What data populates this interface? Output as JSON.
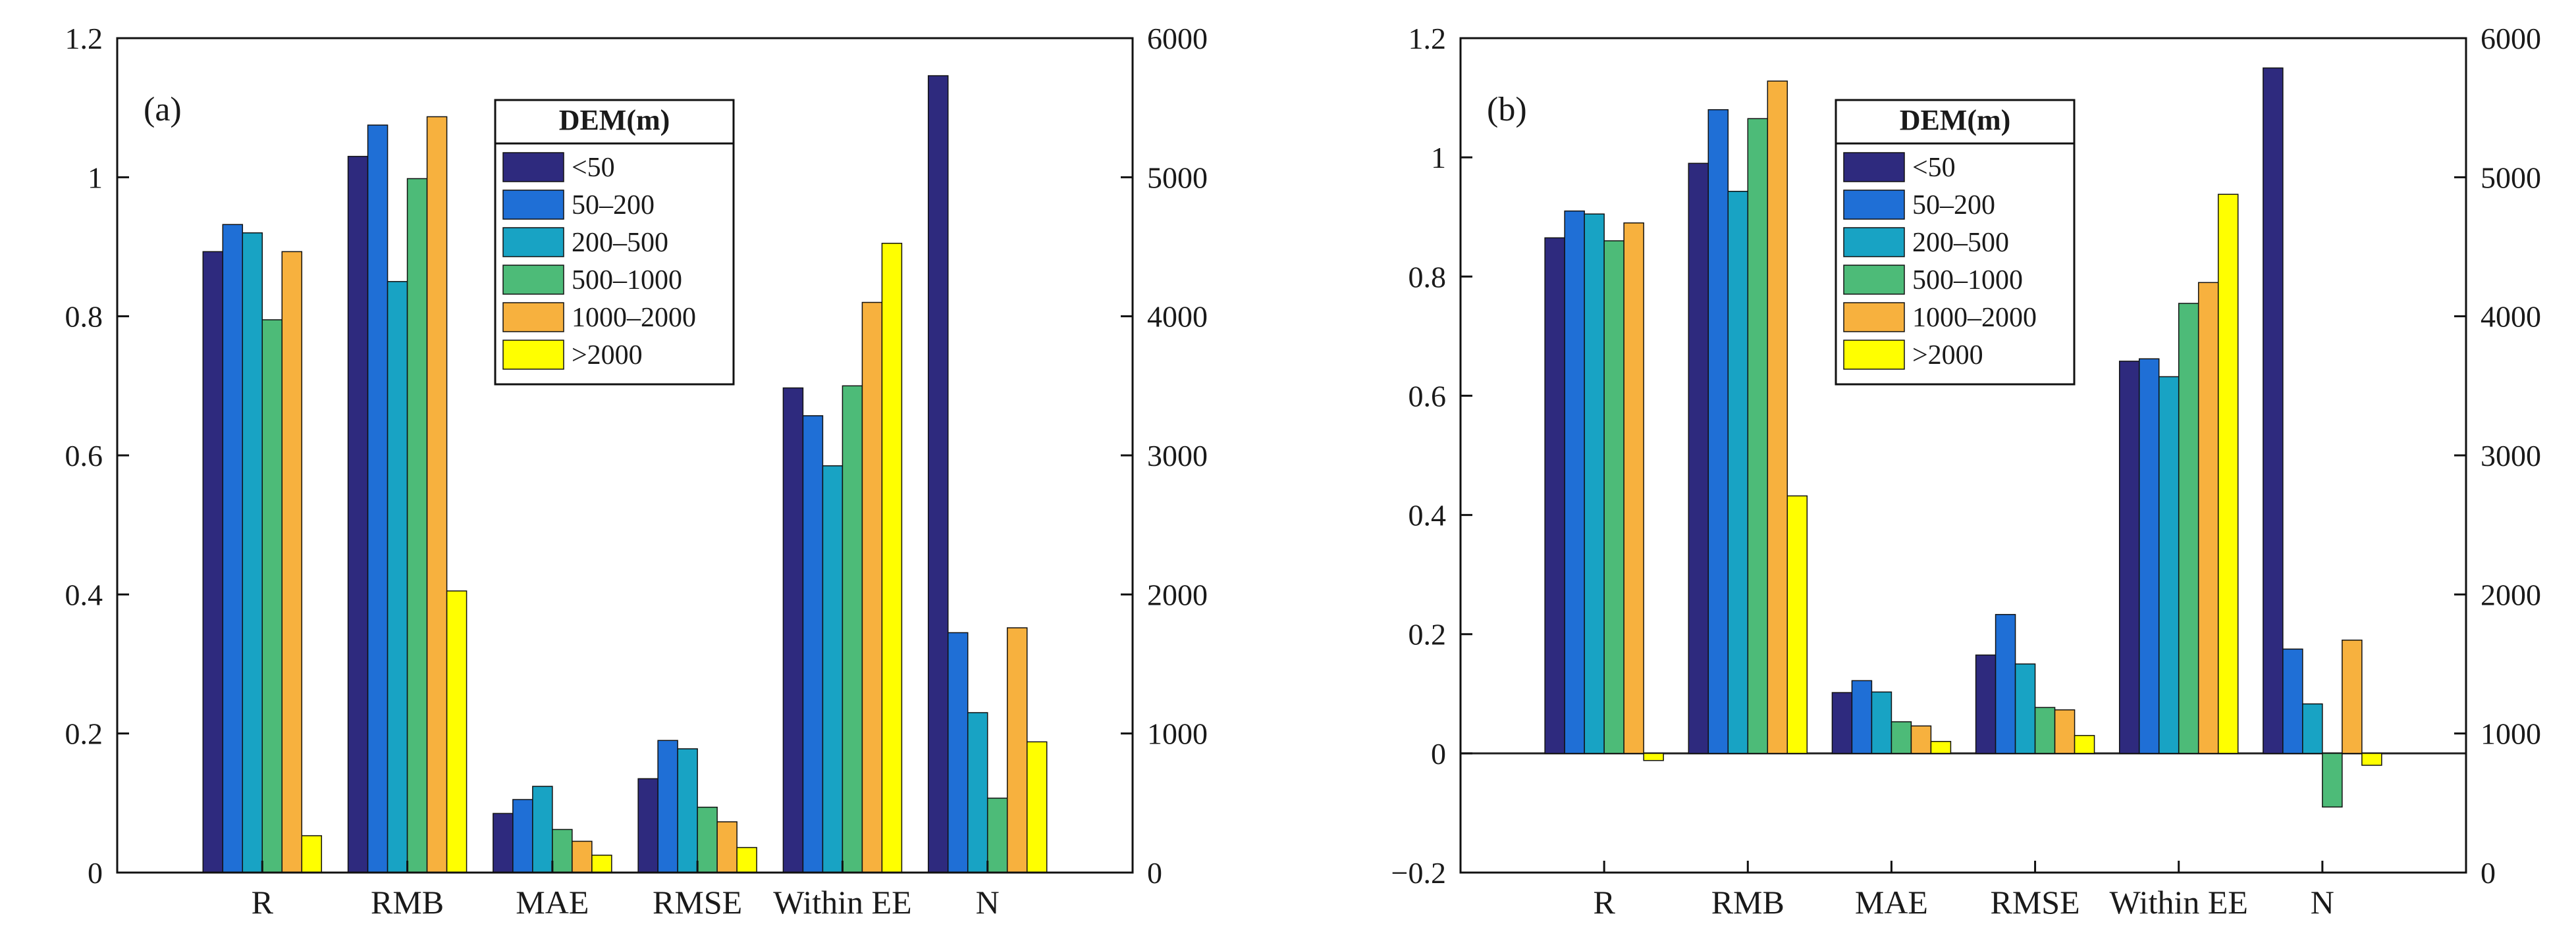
{
  "colors": {
    "<50": "#2e2a7e",
    "50–200": "#1f6fd6",
    "200–500": "#18a3c4",
    "500–1000": "#4dbb78",
    "1000–2000": "#f7b13e",
    ">2000": "#ffff00"
  },
  "chart_data": [
    {
      "type": "bar",
      "panel_label": "(a)",
      "categories": [
        "R",
        "RMB",
        "MAE",
        "RMSE",
        "Within EE",
        "N"
      ],
      "legend_title": "DEM(m)",
      "legend_position": "top-center",
      "ylim": [
        0,
        1.2
      ],
      "yticks": [
        "0",
        "0.2",
        "0.4",
        "0.6",
        "0.8",
        "1",
        "1.2"
      ],
      "y2lim": [
        0,
        6000
      ],
      "y2ticks": [
        "0",
        "1000",
        "2000",
        "3000",
        "4000",
        "5000",
        "6000"
      ],
      "zero_line": false,
      "series": [
        {
          "name": "<50",
          "values": [
            0.893,
            1.03,
            0.085,
            0.135,
            0.697,
            1.146
          ]
        },
        {
          "name": "50–200",
          "values": [
            0.932,
            1.075,
            0.105,
            0.19,
            0.657,
            0.345
          ]
        },
        {
          "name": "200–500",
          "values": [
            0.92,
            0.85,
            0.124,
            0.178,
            0.585,
            0.23
          ]
        },
        {
          "name": "500–1000",
          "values": [
            0.795,
            0.998,
            0.062,
            0.094,
            0.7,
            0.107
          ]
        },
        {
          "name": "1000–2000",
          "values": [
            0.893,
            1.087,
            0.045,
            0.073,
            0.82,
            0.352
          ]
        },
        {
          "name": ">2000",
          "values": [
            0.053,
            0.405,
            0.025,
            0.036,
            0.905,
            0.188
          ]
        }
      ]
    },
    {
      "type": "bar",
      "panel_label": "(b)",
      "categories": [
        "R",
        "RMB",
        "MAE",
        "RMSE",
        "Within EE",
        "N"
      ],
      "legend_title": "DEM(m)",
      "legend_position": "top-center",
      "ylim": [
        -0.2,
        1.2
      ],
      "yticks": [
        "−0.2",
        "0",
        "0.2",
        "0.4",
        "0.6",
        "0.8",
        "1",
        "1.2"
      ],
      "y2lim": [
        0,
        6000
      ],
      "y2ticks": [
        "0",
        "1000",
        "2000",
        "3000",
        "4000",
        "5000",
        "6000"
      ],
      "zero_line": true,
      "series": [
        {
          "name": "<50",
          "values": [
            0.865,
            0.99,
            0.102,
            0.165,
            0.658,
            1.15
          ]
        },
        {
          "name": "50–200",
          "values": [
            0.91,
            1.08,
            0.122,
            0.233,
            0.662,
            0.175
          ]
        },
        {
          "name": "200–500",
          "values": [
            0.905,
            0.943,
            0.103,
            0.15,
            0.632,
            0.083
          ]
        },
        {
          "name": "500–1000",
          "values": [
            0.86,
            1.065,
            0.053,
            0.077,
            0.755,
            -0.09
          ]
        },
        {
          "name": "1000–2000",
          "values": [
            0.89,
            1.128,
            0.046,
            0.073,
            0.79,
            0.19
          ]
        },
        {
          "name": ">2000",
          "values": [
            -0.012,
            0.432,
            0.02,
            0.03,
            0.938,
            -0.02
          ]
        }
      ]
    }
  ]
}
